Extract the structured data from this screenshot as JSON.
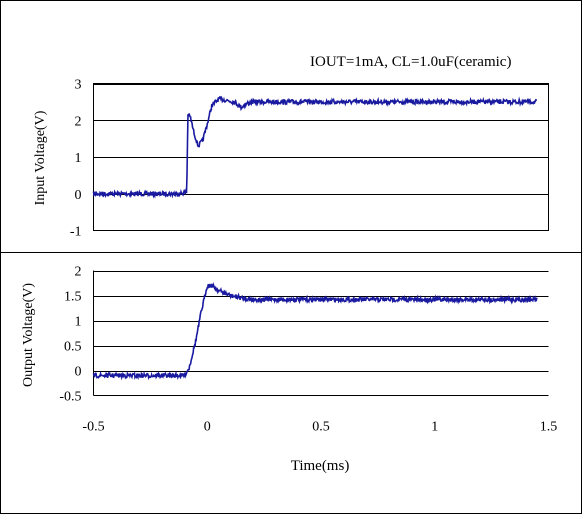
{
  "chart_data": [
    {
      "type": "line",
      "title": "IOUT=1mA, CL=1.0uF(ceramic)",
      "ylabel": "Input Voltage(V)",
      "xlabel": "",
      "xlim": [
        -0.5,
        1.5
      ],
      "ylim": [
        -1,
        3
      ],
      "yticks": [
        "3",
        "2",
        "1",
        "0",
        "-1"
      ],
      "ytick_values": [
        3,
        2,
        1,
        0,
        -1
      ],
      "grid": "horizontal",
      "color": "#1a1aa0",
      "series": [
        {
          "x": [
            -0.5,
            -0.12,
            -0.09,
            -0.085,
            -0.075,
            -0.06,
            -0.04,
            -0.02,
            0.0,
            0.02,
            0.05,
            0.08,
            0.12,
            0.15,
            0.17,
            0.2,
            0.3,
            0.6,
            1.0,
            1.3,
            1.45
          ],
          "y": [
            0,
            0,
            0.05,
            2.15,
            2.1,
            1.7,
            1.3,
            1.45,
            1.9,
            2.4,
            2.58,
            2.55,
            2.5,
            2.35,
            2.45,
            2.5,
            2.5,
            2.5,
            2.5,
            2.5,
            2.5
          ]
        }
      ]
    },
    {
      "type": "line",
      "title": "",
      "ylabel": "Output Voltage(V)",
      "xlabel": "Time(ms)",
      "xlim": [
        -0.5,
        1.5
      ],
      "ylim": [
        -0.5,
        2
      ],
      "xticks": [
        "-0.5",
        "0",
        "0.5",
        "1",
        "1.5"
      ],
      "xtick_values": [
        -0.5,
        0,
        0.5,
        1,
        1.5
      ],
      "yticks": [
        "2",
        "1.5",
        "1",
        "0.5",
        "0",
        "-0.5"
      ],
      "ytick_values": [
        2,
        1.5,
        1,
        0.5,
        0,
        -0.5
      ],
      "grid": "horizontal",
      "color": "#1a1aa0",
      "series": [
        {
          "x": [
            -0.5,
            -0.1,
            -0.08,
            -0.05,
            -0.03,
            -0.01,
            0.0,
            0.02,
            0.05,
            0.1,
            0.15,
            0.2,
            0.4,
            0.8,
            1.2,
            1.45
          ],
          "y": [
            -0.1,
            -0.1,
            0.05,
            0.6,
            1.1,
            1.5,
            1.7,
            1.7,
            1.6,
            1.5,
            1.45,
            1.42,
            1.42,
            1.42,
            1.42,
            1.42
          ]
        }
      ]
    }
  ]
}
